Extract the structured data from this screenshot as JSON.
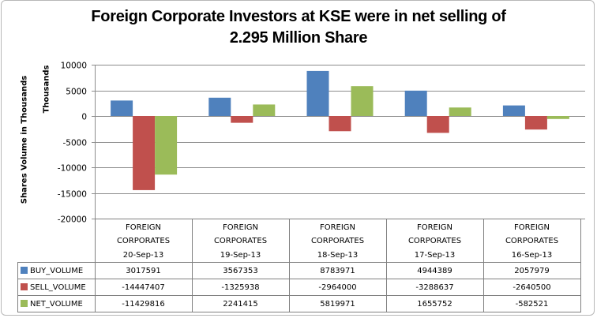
{
  "chart_data": {
    "type": "bar",
    "title_line1": "Foreign Corporate Investors at KSE were in net selling of",
    "title_line2": "2.295 Million Share",
    "ylabel": "Shares Volume in Thousands",
    "yunit_label": "Thousands",
    "ylim": [
      -20000,
      10000
    ],
    "yticks": [
      10000,
      5000,
      0,
      -5000,
      -10000,
      -15000,
      -20000
    ],
    "ytick_labels": [
      "10000",
      "5000",
      "0",
      "-5000",
      "-10000",
      "-15000",
      "-20000"
    ],
    "grid": true,
    "category_group": "FOREIGN CORPORATES",
    "category_group_line1": "FOREIGN",
    "category_group_line2": "CORPORATES",
    "categories": [
      "20-Sep-13",
      "19-Sep-13",
      "18-Sep-13",
      "17-Sep-13",
      "16-Sep-13"
    ],
    "legend_placement": "data-table",
    "series": [
      {
        "name": "BUY_VOLUME",
        "color": "#4f81bd",
        "values": [
          3017591,
          3567353,
          8783971,
          4944389,
          2057979
        ],
        "labels": [
          "3017591",
          "3567353",
          "8783971",
          "4944389",
          "2057979"
        ]
      },
      {
        "name": "SELL_VOLUME",
        "color": "#c0504d",
        "values": [
          -14447407,
          -1325938,
          -2964000,
          -3288637,
          -2640500
        ],
        "labels": [
          "-14447407",
          "-1325938",
          "-2964000",
          "-3288637",
          "-2640500"
        ]
      },
      {
        "name": "NET_VOLUME",
        "color": "#9bbb59",
        "values": [
          -11429816,
          2241415,
          5819971,
          1655752,
          -582521
        ],
        "labels": [
          "-11429816",
          "2241415",
          "5819971",
          "1655752",
          "-582521"
        ]
      }
    ],
    "display_scale": 1000
  }
}
